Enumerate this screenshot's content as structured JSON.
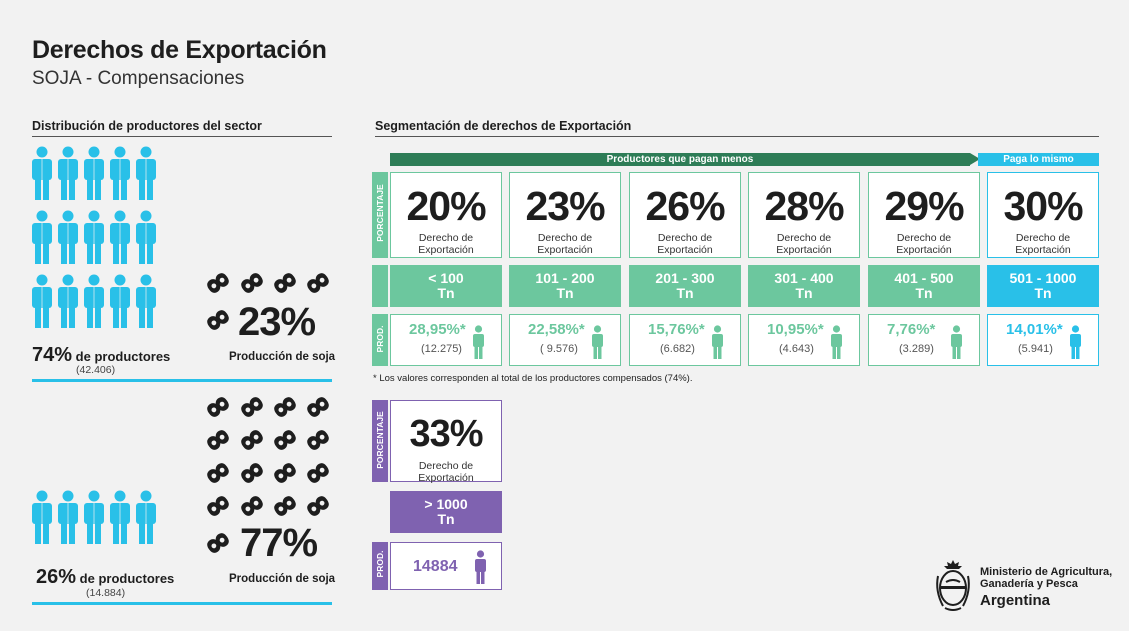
{
  "header": {
    "title": "Derechos de Exportación",
    "subtitle": "SOJA - Compensaciones"
  },
  "left": {
    "heading": "Distribución de productores del sector",
    "group1": {
      "producers_pct": "74%",
      "producers_label": "de productores",
      "producers_count": "(42.406)",
      "soy_pct": "23%",
      "soy_label": "Producción de soja"
    },
    "group2": {
      "producers_pct": "26%",
      "producers_label": "de productores",
      "producers_count": "(14.884)",
      "soy_pct": "77%",
      "soy_label": "Producción de soja"
    }
  },
  "segmentation": {
    "heading": "Segmentación de derechos de Exportación",
    "banner_less": "Productores que pagan menos",
    "banner_same": "Paga lo mismo",
    "row_label_pct": "PORCENTAJE",
    "row_label_prod": "PROD.",
    "desc": "Derecho de Exportación",
    "tiers": [
      {
        "pct": "20%",
        "range1": "< 100",
        "range2": "Tn",
        "prod_pct": "28,95%*",
        "prod_count": "(12.275)"
      },
      {
        "pct": "23%",
        "range1": "101 - 200",
        "range2": "Tn",
        "prod_pct": "22,58%*",
        "prod_count": "( 9.576)"
      },
      {
        "pct": "26%",
        "range1": "201 - 300",
        "range2": "Tn",
        "prod_pct": "15,76%*",
        "prod_count": "(6.682)"
      },
      {
        "pct": "28%",
        "range1": "301 - 400",
        "range2": "Tn",
        "prod_pct": "10,95%*",
        "prod_count": "(4.643)"
      },
      {
        "pct": "29%",
        "range1": "401 - 500",
        "range2": "Tn",
        "prod_pct": "7,76%*",
        "prod_count": "(3.289)"
      },
      {
        "pct": "30%",
        "range1": "501 - 1000",
        "range2": "Tn",
        "prod_pct": "14,01%*",
        "prod_count": "(5.941)"
      }
    ],
    "note": "* Los valores corresponden al total de los productores compensados (74%).",
    "top_tier": {
      "pct": "33%",
      "range1": "> 1000",
      "range2": "Tn",
      "prod_count": "14884"
    }
  },
  "logo": {
    "line1": "Ministerio de Agricultura,",
    "line2": "Ganadería y Pesca",
    "line3": "Argentina"
  },
  "colors": {
    "green": "#6cc79e",
    "dark_green": "#2e7d57",
    "blue": "#29c0e8",
    "purple": "#7f62b0"
  }
}
